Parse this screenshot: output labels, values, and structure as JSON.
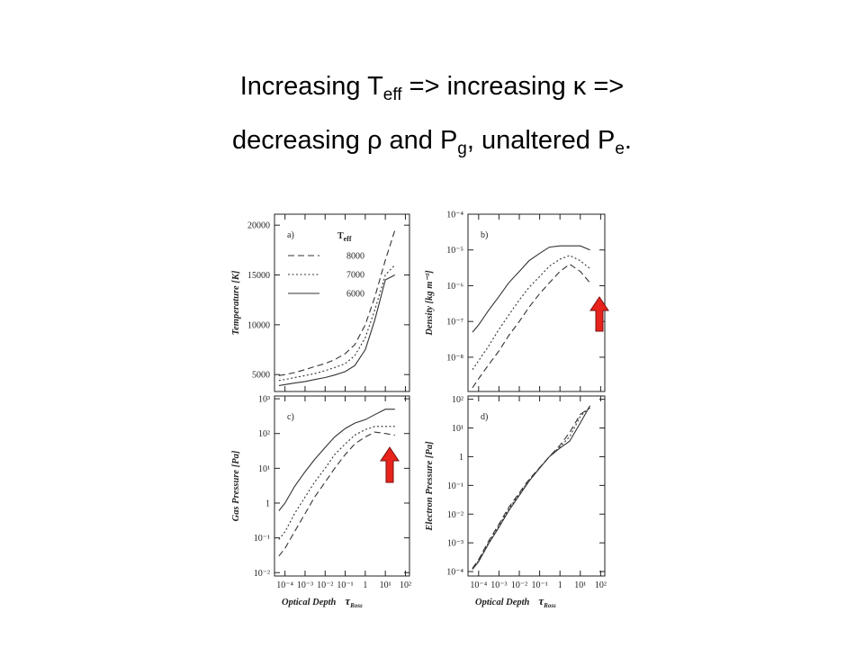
{
  "slide": {
    "line1": [
      "Increasing T",
      "eff",
      " => increasing κ =>"
    ],
    "line2": [
      "decreasing ρ and P",
      "g",
      ", unaltered P",
      "e",
      "."
    ]
  },
  "chart_data": [
    {
      "type": "line",
      "panel_label": "a)",
      "ylabel": "Temperature [K]",
      "xlog": true,
      "ylog": false,
      "xlim": [
        3e-05,
        160
      ],
      "ylim": [
        3300,
        21100
      ],
      "xticks": [
        0.0001,
        0.001,
        0.01,
        0.1,
        1,
        10,
        100
      ],
      "yticks": [
        5000,
        10000,
        15000,
        20000
      ],
      "legend_title": "T",
      "legend_title_sub": "eff",
      "x": [
        5e-05,
        0.0001,
        0.0003,
        0.001,
        0.003,
        0.01,
        0.03,
        0.1,
        0.3,
        1,
        3,
        10,
        30
      ],
      "series": [
        {
          "name": "8000",
          "style": "dashed",
          "color": "#333333",
          "values": [
            4900,
            5000,
            5200,
            5500,
            5800,
            6100,
            6500,
            7100,
            8000,
            10000,
            12800,
            16500,
            19500
          ]
        },
        {
          "name": "7000",
          "style": "dotted",
          "color": "#333333",
          "values": [
            4400,
            4500,
            4700,
            4900,
            5100,
            5400,
            5700,
            6100,
            6900,
            8700,
            11500,
            15000,
            16000
          ]
        },
        {
          "name": "6000",
          "style": "solid",
          "color": "#333333",
          "values": [
            3900,
            4000,
            4150,
            4300,
            4500,
            4700,
            4950,
            5300,
            5900,
            7500,
            10500,
            14500,
            15000
          ]
        }
      ]
    },
    {
      "type": "line",
      "panel_label": "b)",
      "ylabel": "Density [kg m⁻³]",
      "xlog": true,
      "ylog": true,
      "xlim": [
        3e-05,
        160
      ],
      "ylim": [
        1.1e-09,
        0.0001
      ],
      "xticks": [
        0.0001,
        0.001,
        0.01,
        0.1,
        1,
        10,
        100
      ],
      "yticks": [
        {
          "value": 0.0001,
          "label": "10⁻⁴"
        },
        {
          "value": 1e-05,
          "label": "10⁻⁵"
        },
        {
          "value": 1e-06,
          "label": "10⁻⁶"
        },
        {
          "value": 1e-07,
          "label": "10⁻⁷"
        },
        {
          "value": 1e-08,
          "label": "10⁻⁸"
        }
      ],
      "x": [
        5e-05,
        0.0001,
        0.0003,
        0.001,
        0.003,
        0.01,
        0.03,
        0.1,
        0.3,
        1,
        3,
        10,
        30
      ],
      "series": [
        {
          "style": "dashed",
          "color": "#333333",
          "values": [
            1.4e-09,
            2.5e-09,
            6e-09,
            1.5e-08,
            4e-08,
            1e-07,
            2.5e-07,
            6e-07,
            1.2e-06,
            2.5e-06,
            4e-06,
            2.5e-06,
            1.2e-06
          ]
        },
        {
          "style": "dotted",
          "color": "#333333",
          "values": [
            4.5e-09,
            8e-09,
            2e-08,
            6e-08,
            1.5e-07,
            4e-07,
            9e-07,
            1.8e-06,
            3.5e-06,
            5.5e-06,
            7e-06,
            5e-06,
            3e-06
          ]
        },
        {
          "style": "solid",
          "color": "#333333",
          "values": [
            5e-08,
            8e-08,
            2e-07,
            5e-07,
            1.2e-06,
            2.5e-06,
            5e-06,
            8e-06,
            1.2e-05,
            1.3e-05,
            1.3e-05,
            1.3e-05,
            1e-05
          ]
        }
      ]
    },
    {
      "type": "line",
      "panel_label": "c)",
      "ylabel": "Gas Pressure [Pa]",
      "xlabel": "Optical Depth",
      "xlabel_symbol": "τ",
      "xlabel_sub": "Ross",
      "xlog": true,
      "ylog": true,
      "xlim": [
        3e-05,
        160
      ],
      "ylim": [
        0.008,
        1200
      ],
      "xticks": [
        {
          "value": 0.0001,
          "label": "10⁻⁴"
        },
        {
          "value": 0.001,
          "label": "10⁻³"
        },
        {
          "value": 0.01,
          "label": "10⁻²"
        },
        {
          "value": 0.1,
          "label": "10⁻¹"
        },
        1,
        {
          "value": 10,
          "label": "10¹"
        },
        {
          "value": 100,
          "label": "10²"
        }
      ],
      "yticks": [
        {
          "value": 0.01,
          "label": "10⁻²"
        },
        {
          "value": 0.1,
          "label": "10⁻¹"
        },
        1,
        {
          "value": 10,
          "label": "10¹"
        },
        {
          "value": 100,
          "label": "10²"
        },
        {
          "value": 1000,
          "label": "10³"
        }
      ],
      "x": [
        5e-05,
        0.0001,
        0.0003,
        0.001,
        0.003,
        0.01,
        0.03,
        0.1,
        0.3,
        1,
        3,
        10,
        30
      ],
      "series": [
        {
          "style": "dashed",
          "color": "#333333",
          "values": [
            0.03,
            0.05,
            0.15,
            0.5,
            1.5,
            4,
            10,
            25,
            50,
            80,
            110,
            100,
            90
          ]
        },
        {
          "style": "dotted",
          "color": "#333333",
          "values": [
            0.09,
            0.15,
            0.5,
            1.5,
            4,
            10,
            25,
            50,
            90,
            130,
            160,
            160,
            160
          ]
        },
        {
          "style": "solid",
          "color": "#333333",
          "values": [
            0.6,
            1,
            3,
            8,
            18,
            40,
            80,
            140,
            200,
            250,
            350,
            500,
            500
          ]
        }
      ]
    },
    {
      "type": "line",
      "panel_label": "d)",
      "ylabel": "Electron Pressure [Pa]",
      "xlabel": "Optical Depth",
      "xlabel_symbol": "τ",
      "xlabel_sub": "Ross",
      "xlog": true,
      "ylog": true,
      "xlim": [
        3e-05,
        160
      ],
      "ylim": [
        7e-05,
        130
      ],
      "xticks": [
        {
          "value": 0.0001,
          "label": "10⁻⁴"
        },
        {
          "value": 0.001,
          "label": "10⁻³"
        },
        {
          "value": 0.01,
          "label": "10⁻²"
        },
        {
          "value": 0.1,
          "label": "10⁻¹"
        },
        1,
        {
          "value": 10,
          "label": "10¹"
        },
        {
          "value": 100,
          "label": "10²"
        }
      ],
      "yticks": [
        {
          "value": 0.0001,
          "label": "10⁻⁴"
        },
        {
          "value": 0.001,
          "label": "10⁻³"
        },
        {
          "value": 0.01,
          "label": "10⁻²"
        },
        {
          "value": 0.1,
          "label": "10⁻¹"
        },
        1,
        {
          "value": 10,
          "label": "10¹"
        },
        {
          "value": 100,
          "label": "10²"
        }
      ],
      "x": [
        5e-05,
        0.0001,
        0.0003,
        0.001,
        0.003,
        0.01,
        0.03,
        0.1,
        0.3,
        1,
        3,
        10,
        30
      ],
      "series": [
        {
          "style": "dashed",
          "color": "#333333",
          "values": [
            0.00013,
            0.00026,
            0.0011,
            0.0045,
            0.017,
            0.055,
            0.16,
            0.42,
            1,
            2.5,
            7,
            30,
            50
          ]
        },
        {
          "style": "dotted",
          "color": "#333333",
          "values": [
            0.00012,
            0.00024,
            0.001,
            0.004,
            0.015,
            0.05,
            0.15,
            0.4,
            1,
            2.2,
            5,
            25,
            55
          ]
        },
        {
          "style": "solid",
          "color": "#333333",
          "values": [
            0.00012,
            0.00022,
            0.0009,
            0.0035,
            0.013,
            0.045,
            0.14,
            0.4,
            1,
            2,
            3.5,
            15,
            60
          ]
        }
      ]
    }
  ]
}
